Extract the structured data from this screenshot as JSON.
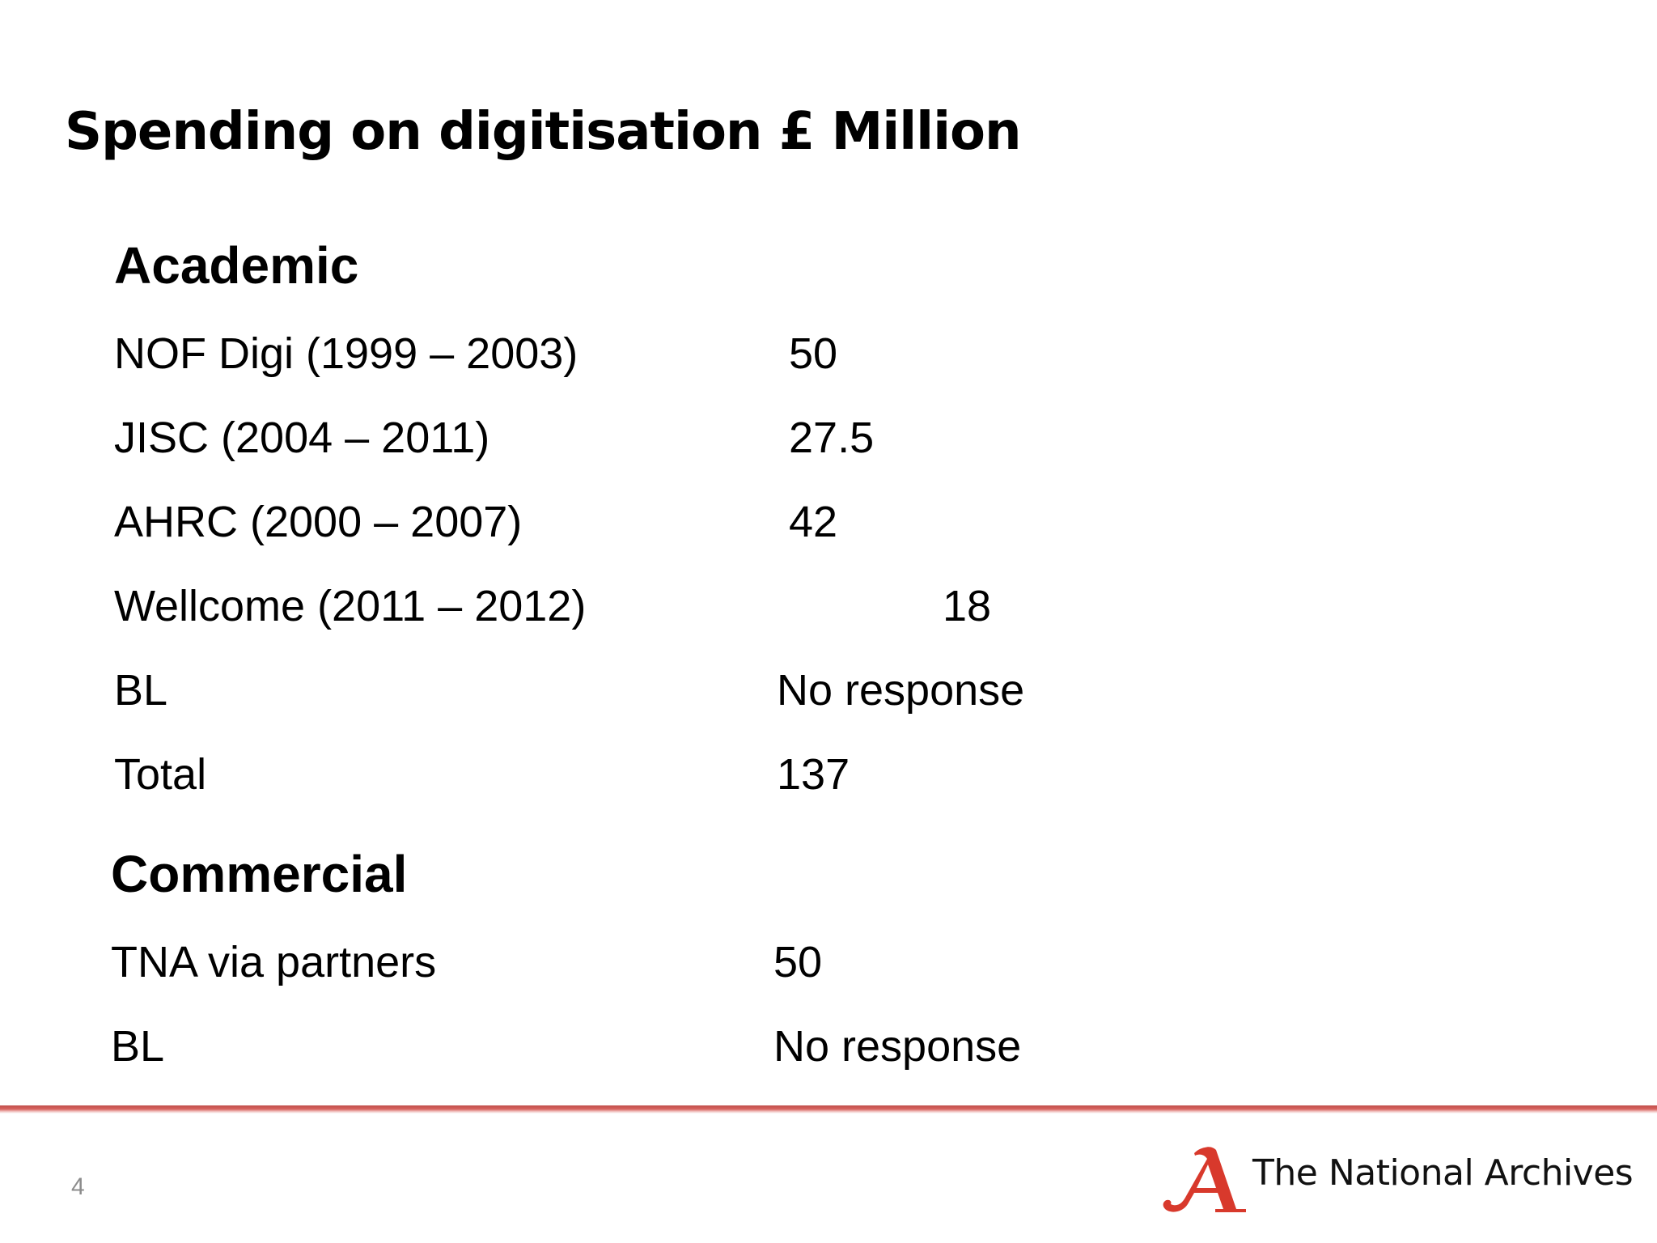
{
  "slide": {
    "title": "Spending on digitisation £ Million",
    "page_number": "4"
  },
  "academic": {
    "heading": "Academic",
    "rows": [
      {
        "label": "NOF Digi (1999 – 2003)",
        "value": "50"
      },
      {
        "label": "JISC (2004 – 2011)",
        "value": "27.5"
      },
      {
        "label": "AHRC (2000 – 2007)",
        "value": "42"
      },
      {
        "label": "Wellcome (2011 – 2012)",
        "value": "18"
      },
      {
        "label": "BL",
        "value": "No response"
      },
      {
        "label": "Total",
        "value": "137"
      }
    ]
  },
  "commercial": {
    "heading": "Commercial",
    "rows": [
      {
        "label": "TNA via partners",
        "value": "50"
      },
      {
        "label": "BL",
        "value": "No response"
      }
    ]
  },
  "footer": {
    "brand_name": "The National Archives",
    "logo_icon": "national-archives-a-logo",
    "accent_color": "#c0504d"
  }
}
